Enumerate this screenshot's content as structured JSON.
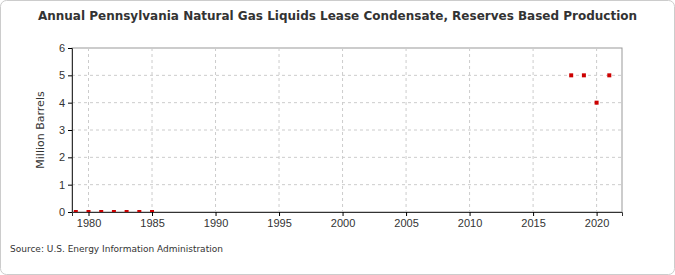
{
  "chart_data": {
    "type": "scatter",
    "title": "Annual Pennsylvania Natural Gas Liquids Lease Condensate, Reserves Based Production",
    "y_label": "Million Barrels",
    "source": "Source: U.S. Energy Information Administration",
    "x": [
      1979,
      1980,
      1981,
      1982,
      1983,
      1984,
      1985,
      2018,
      2019,
      2020,
      2021
    ],
    "values": [
      0,
      0,
      0,
      0,
      0,
      0,
      0,
      5,
      5,
      4,
      5
    ],
    "color": "#cc0000",
    "marker": "square",
    "xlim": [
      1978.7,
      2022
    ],
    "xticks": [
      1980,
      1985,
      1990,
      1995,
      2000,
      2005,
      2010,
      2015,
      2020
    ],
    "ylim": [
      0,
      6
    ],
    "yticks": [
      0,
      1,
      2,
      3,
      4,
      5,
      6
    ],
    "grid": true
  }
}
